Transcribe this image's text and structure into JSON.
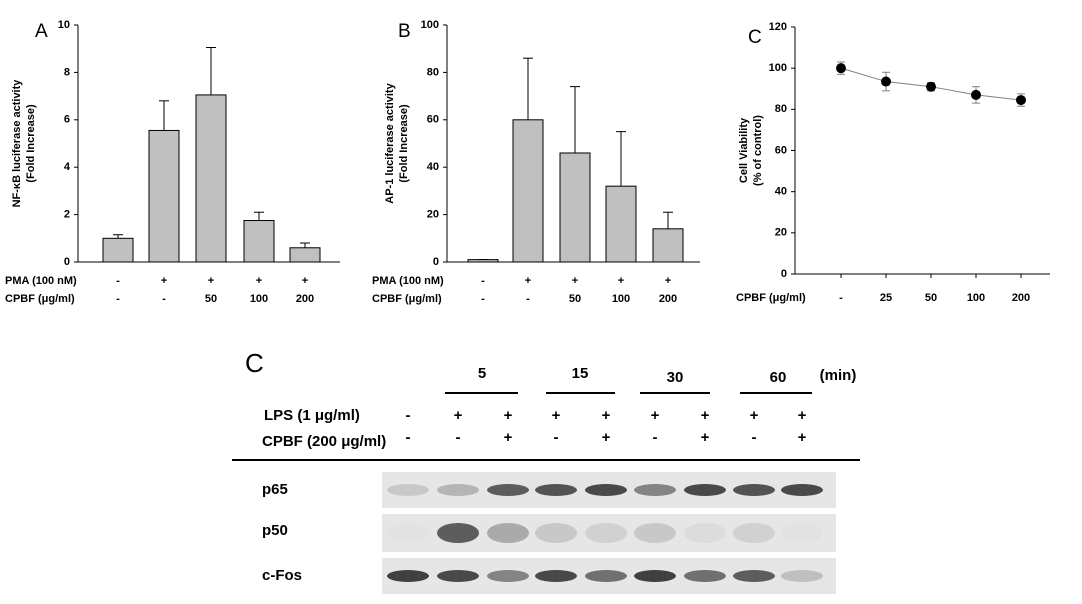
{
  "chart_data": [
    {
      "type": "bar",
      "title": "A",
      "y_label": [
        "NF-κB luciferase activity",
        "(Fold Increase)"
      ],
      "values": [
        1.0,
        5.55,
        7.05,
        1.75,
        0.6
      ],
      "errors": [
        0.15,
        1.25,
        2.0,
        0.35,
        0.2
      ],
      "color": "#c0c0c0",
      "ylim": [
        0,
        10
      ],
      "yticks": [
        0,
        2,
        4,
        6,
        8,
        10
      ],
      "conditions": [
        {
          "name": "PMA (100 nM)",
          "labels": [
            "-",
            "+",
            "+",
            "+",
            "+"
          ]
        },
        {
          "name": "CPBF (μg/ml)",
          "labels": [
            "-",
            "-",
            "50",
            "100",
            "200"
          ]
        }
      ]
    },
    {
      "type": "bar",
      "title": "B",
      "y_label": [
        "AP-1 luciferase activity",
        "(Fold Increase)"
      ],
      "values": [
        1,
        60,
        46,
        32,
        14
      ],
      "errors": [
        0,
        26,
        28,
        23,
        7
      ],
      "color": "#c0c0c0",
      "ylim": [
        0,
        100
      ],
      "yticks": [
        0,
        20,
        40,
        60,
        80,
        100
      ],
      "conditions": [
        {
          "name": "PMA (100 nM)",
          "labels": [
            "-",
            "+",
            "+",
            "+",
            "+"
          ]
        },
        {
          "name": "CPBF (μg/ml)",
          "labels": [
            "-",
            "-",
            "50",
            "100",
            "200"
          ]
        }
      ]
    },
    {
      "type": "line",
      "title": "C",
      "y_label": [
        "Cell Viability",
        "(% of control)"
      ],
      "x_label": "CPBF (μg/ml)",
      "categories": [
        "-",
        "25",
        "50",
        "100",
        "200"
      ],
      "values": [
        100,
        93.5,
        91,
        87,
        84.5
      ],
      "errors": [
        3,
        4.5,
        2,
        4,
        3
      ],
      "color": "#000000",
      "line_color": "#808080",
      "ylim": [
        0,
        120
      ],
      "yticks": [
        0,
        20,
        40,
        60,
        80,
        100,
        120
      ]
    }
  ],
  "blot": {
    "title": "C",
    "times": [
      "5",
      "15",
      "30",
      "60"
    ],
    "time_unit": "(min)",
    "conditions": [
      {
        "name": "LPS (1 μg/ml)",
        "labels": [
          "-",
          "+",
          "+",
          "+",
          "+",
          "+",
          "+",
          "+",
          "+"
        ]
      },
      {
        "name": "CPBF (200 μg/ml)",
        "labels": [
          "-",
          "-",
          "+",
          "-",
          "+",
          "-",
          "+",
          "-",
          "+"
        ]
      }
    ],
    "bands": [
      "p65",
      "p50",
      "c-Fos"
    ]
  }
}
